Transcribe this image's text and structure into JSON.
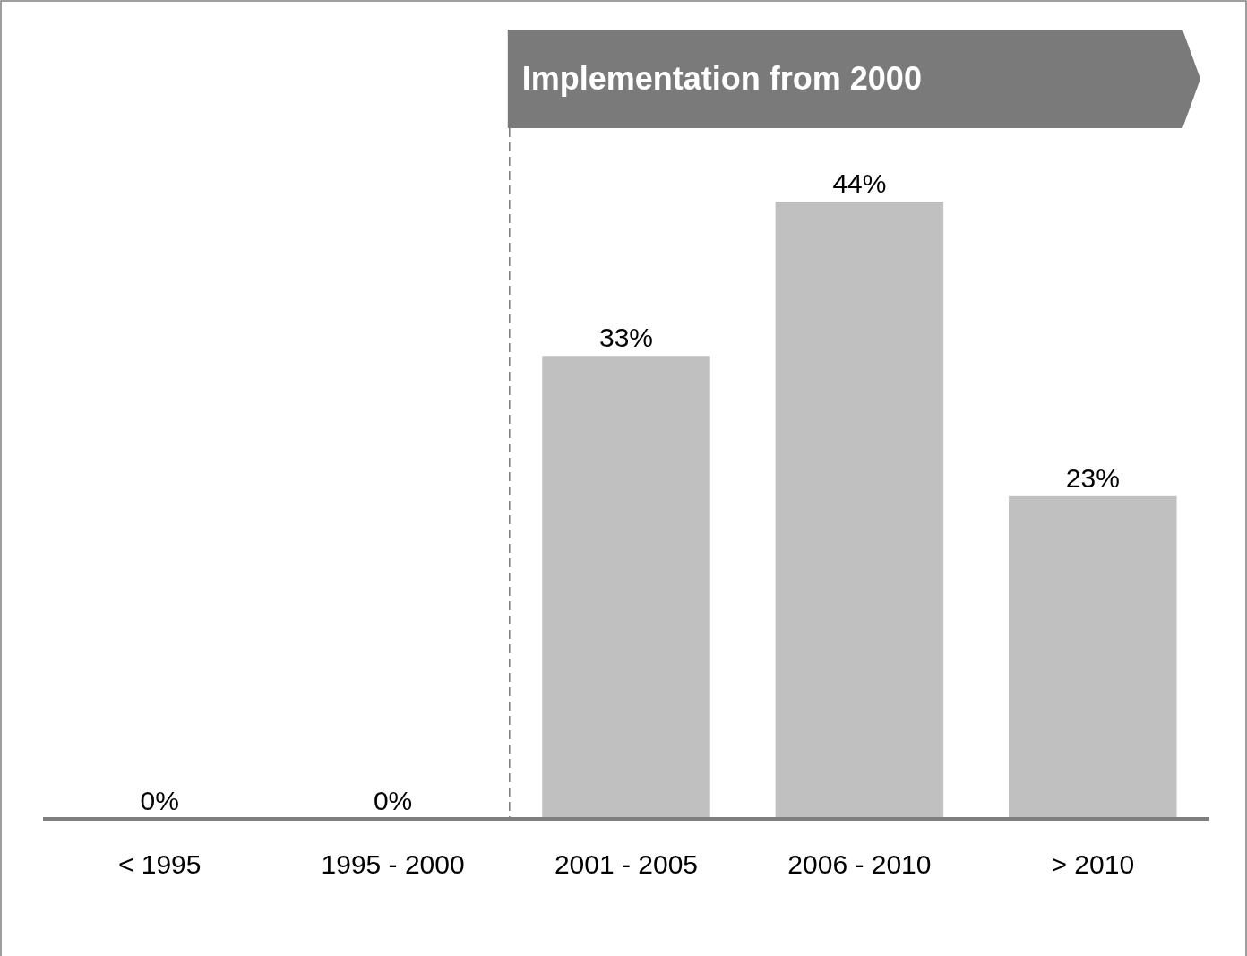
{
  "chart_data": {
    "type": "bar",
    "categories": [
      "< 1995",
      "1995 - 2000",
      "2001 - 2005",
      "2006 - 2010",
      "> 2010"
    ],
    "values": [
      0,
      0,
      33,
      44,
      23
    ],
    "color": "#c0c0c0",
    "value_labels": [
      "0%",
      "0%",
      "33%",
      "44%",
      "23%"
    ],
    "annotations": [
      "Implementation from 2000"
    ]
  }
}
